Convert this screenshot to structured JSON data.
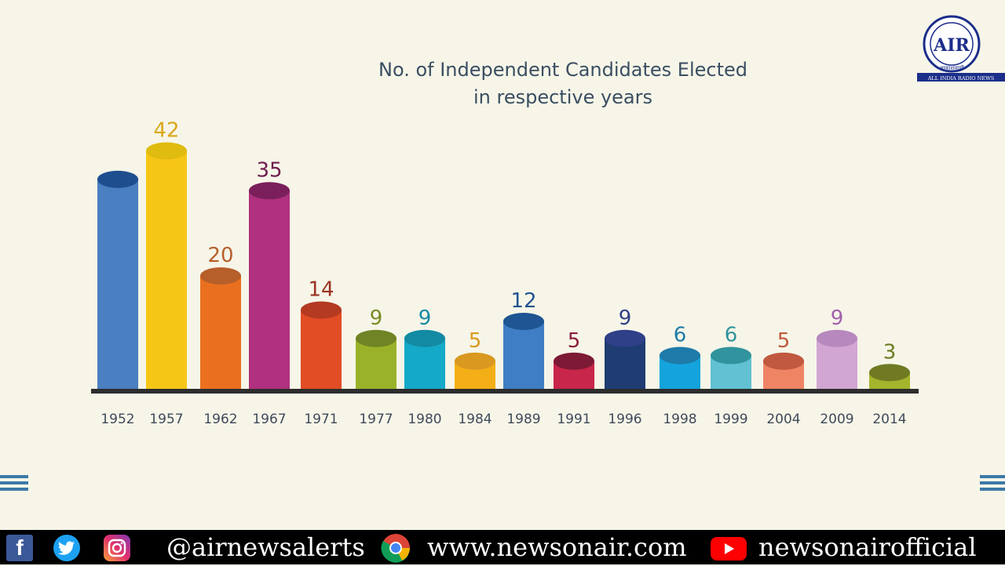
{
  "chart_data": {
    "type": "bar",
    "title_lines": [
      "No. of Independent Candidates Elected",
      "in respective years"
    ],
    "categories": [
      "1952",
      "1957",
      "1962",
      "1967",
      "1971",
      "1977",
      "1980",
      "1984",
      "1989",
      "1991",
      "1996",
      "1998",
      "1999",
      "2004",
      "2009",
      "2014"
    ],
    "values": [
      37,
      42,
      20,
      35,
      14,
      9,
      9,
      5,
      12,
      5,
      9,
      6,
      6,
      5,
      9,
      3
    ],
    "labels": [
      "",
      "42",
      "20",
      "35",
      "14",
      "9",
      "9",
      "5",
      "12",
      "5",
      "9",
      "6",
      "6",
      "5",
      "9",
      "3"
    ],
    "colors": [
      "#4a7fc1",
      "#f6c617",
      "#ea7020",
      "#b0317f",
      "#e24d26",
      "#9ab229",
      "#14a9c8",
      "#f5af16",
      "#3f7ec4",
      "#c8264a",
      "#1f3d73",
      "#14a3dc",
      "#62c1d3",
      "#ef8465",
      "#d2a6d2",
      "#a4b42c"
    ],
    "cap_colors": [
      "#1f4e8f",
      "#e0bb10",
      "#b65f2a",
      "#7a1f5c",
      "#b43a21",
      "#6f8425",
      "#138aa3",
      "#d99820",
      "#1e5592",
      "#7d1a35",
      "#2f3f88",
      "#1e7aa8",
      "#31939d",
      "#c0593f",
      "#b788bd",
      "#6f7a22"
    ],
    "label_colors": [
      "#1f4e8f",
      "#d9a81a",
      "#b65f2a",
      "#6e1d4f",
      "#9a3322",
      "#7a8a26",
      "#148aa3",
      "#d89a1c",
      "#20538f",
      "#8a1d3c",
      "#2f3f88",
      "#1e7aa8",
      "#31939d",
      "#c0593f",
      "#a35fab",
      "#6f7a22"
    ],
    "ylim": [
      0,
      44
    ],
    "grid": false,
    "legend": "none"
  },
  "brand": {
    "logo_text": "आकाशवाणी",
    "logo_subtext": "ALL INDIA RADIO NEWS",
    "logo_letters": "AIR"
  },
  "footer": {
    "twitter_handle": "@airnewsalerts",
    "website": "www.newsonair.com",
    "youtube": "newsonairofficial",
    "icons": [
      "facebook-icon",
      "twitter-icon",
      "instagram-icon",
      "chrome-icon",
      "youtube-icon"
    ]
  }
}
